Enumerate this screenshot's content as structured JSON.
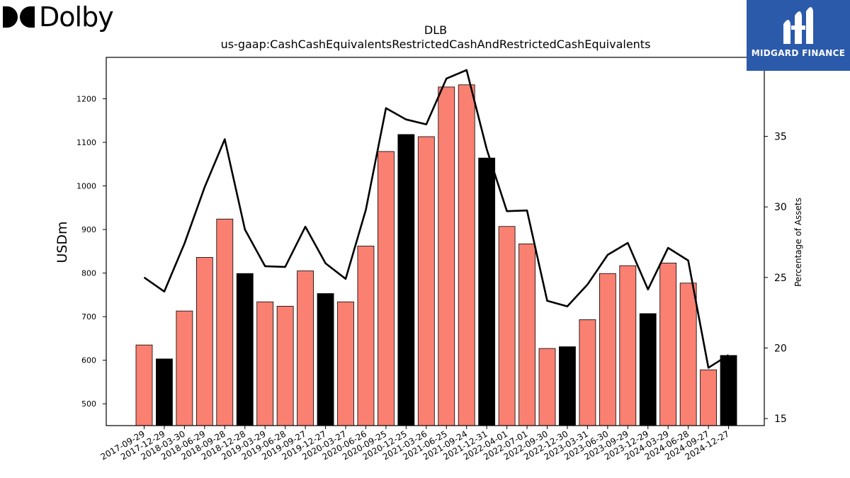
{
  "brand_left": {
    "name": "Dolby",
    "icon": "dolby-double-d-icon"
  },
  "brand_right": {
    "name": "MIDGARD FINANCE",
    "icon": "midgard-m-icon",
    "background": "#2b5aab"
  },
  "chart_data": {
    "type": "bar",
    "title": "DLB",
    "subtitle": "us-gaap:CashCashEquivalentsRestrictedCashAndRestrictedCashEquivalents",
    "ylabel": "USDm",
    "y2label": "Percentage of Assets",
    "ylim": [
      450,
      1295
    ],
    "y2lim": [
      14.5,
      40.6
    ],
    "yticks": [
      500,
      600,
      700,
      800,
      900,
      1000,
      1100,
      1200
    ],
    "y2ticks": [
      15,
      20,
      25,
      30,
      35
    ],
    "categories": [
      "2017-09-29",
      "2017-12-29",
      "2018-03-30",
      "2018-06-29",
      "2018-09-28",
      "2018-12-28",
      "2019-03-29",
      "2019-06-28",
      "2019-09-27",
      "2019-12-27",
      "2020-03-27",
      "2020-06-26",
      "2020-09-25",
      "2020-12-25",
      "2021-03-26",
      "2021-06-25",
      "2021-09-24",
      "2021-12-31",
      "2022-04-01",
      "2022-07-01",
      "2022-09-30",
      "2022-12-30",
      "2023-03-31",
      "2023-06-30",
      "2023-09-29",
      "2023-12-29",
      "2024-03-29",
      "2024-06-28",
      "2024-09-27",
      "2024-12-27"
    ],
    "series": [
      {
        "axis": "left",
        "kind": "bar",
        "values": [
          635,
          603,
          713,
          836,
          924,
          799,
          734,
          724,
          805,
          753,
          734,
          862,
          1079,
          1118,
          1113,
          1227,
          1232,
          1064,
          907,
          867,
          627,
          631,
          693,
          799,
          817,
          707,
          823,
          777,
          578,
          611
        ],
        "highlight": [
          false,
          true,
          false,
          false,
          false,
          true,
          false,
          false,
          false,
          true,
          false,
          false,
          false,
          true,
          false,
          false,
          false,
          true,
          false,
          false,
          false,
          true,
          false,
          false,
          false,
          true,
          false,
          false,
          false,
          true
        ]
      },
      {
        "axis": "right",
        "kind": "line",
        "values": [
          25.0,
          24.0,
          27.4,
          31.4,
          34.8,
          28.4,
          25.8,
          25.75,
          28.6,
          26.0,
          24.9,
          29.8,
          37.0,
          36.2,
          35.85,
          39.1,
          39.7,
          34.1,
          29.7,
          29.75,
          23.35,
          22.95,
          24.5,
          26.6,
          27.45,
          24.15,
          27.1,
          26.2,
          18.6,
          19.5
        ]
      }
    ],
    "colors": {
      "bar": "#fa8072",
      "bar_highlight": "#000000",
      "line": "#000000"
    },
    "grid": false
  }
}
